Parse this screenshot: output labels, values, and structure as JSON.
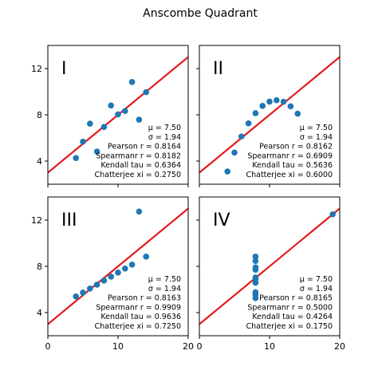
{
  "chart_data": {
    "type": "scatter",
    "title": "Anscombe Quadrant",
    "xlim": [
      0,
      20
    ],
    "ylim": [
      2,
      14
    ],
    "xticks": [
      "0",
      "10",
      "20"
    ],
    "yticks": [
      "4",
      "8",
      "12"
    ],
    "grid": false,
    "point_color": "#1f77b4",
    "line_color": "#e41a1c",
    "fit_line": {
      "intercept": 3,
      "slope": 0.5
    },
    "panels": [
      {
        "label": "I",
        "points": [
          [
            10,
            8.04
          ],
          [
            8,
            6.95
          ],
          [
            13,
            7.58
          ],
          [
            9,
            8.81
          ],
          [
            11,
            8.33
          ],
          [
            14,
            9.96
          ],
          [
            6,
            7.24
          ],
          [
            4,
            4.26
          ],
          [
            12,
            10.84
          ],
          [
            7,
            4.82
          ],
          [
            5,
            5.68
          ]
        ],
        "stats": [
          "μ = 7.50",
          "σ = 1.94",
          "Pearson r = 0.8164",
          "Spearmanr r = 0.8182",
          "Kendall tau = 0.6364",
          "Chatterjee xi = 0.2750"
        ]
      },
      {
        "label": "II",
        "points": [
          [
            10,
            9.14
          ],
          [
            8,
            8.14
          ],
          [
            13,
            8.74
          ],
          [
            9,
            8.77
          ],
          [
            11,
            9.26
          ],
          [
            14,
            8.1
          ],
          [
            6,
            6.13
          ],
          [
            4,
            3.1
          ],
          [
            12,
            9.13
          ],
          [
            7,
            7.26
          ],
          [
            5,
            4.74
          ]
        ],
        "stats": [
          "μ = 7.50",
          "σ = 1.94",
          "Pearson r = 0.8162",
          "Spearmanr r = 0.6909",
          "Kendall tau = 0.5636",
          "Chatterjee xi = 0.6000"
        ]
      },
      {
        "label": "III",
        "points": [
          [
            10,
            7.46
          ],
          [
            8,
            6.77
          ],
          [
            13,
            12.74
          ],
          [
            9,
            7.11
          ],
          [
            11,
            7.81
          ],
          [
            14,
            8.84
          ],
          [
            6,
            6.08
          ],
          [
            4,
            5.39
          ],
          [
            12,
            8.15
          ],
          [
            7,
            6.42
          ],
          [
            5,
            5.73
          ]
        ],
        "stats": [
          "μ = 7.50",
          "σ = 1.94",
          "Pearson r = 0.8163",
          "Spearmanr r = 0.9909",
          "Kendall tau = 0.9636",
          "Chatterjee xi = 0.7250"
        ]
      },
      {
        "label": "IV",
        "points": [
          [
            8,
            6.58
          ],
          [
            8,
            5.76
          ],
          [
            8,
            7.71
          ],
          [
            8,
            8.84
          ],
          [
            8,
            8.47
          ],
          [
            8,
            7.04
          ],
          [
            8,
            5.25
          ],
          [
            19,
            12.5
          ],
          [
            8,
            5.56
          ],
          [
            8,
            7.91
          ],
          [
            8,
            6.89
          ]
        ],
        "stats": [
          "μ = 7.50",
          "σ = 1.94",
          "Pearson r = 0.8165",
          "Spearmanr r = 0.5000",
          "Kendall tau = 0.4264",
          "Chatterjee xi = 0.1750"
        ]
      }
    ]
  }
}
